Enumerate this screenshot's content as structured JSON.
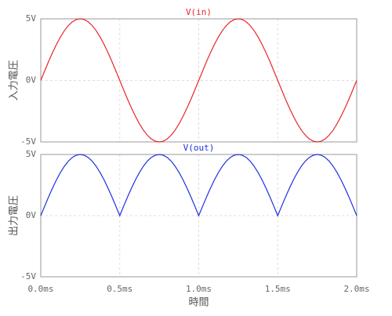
{
  "chart_data": [
    {
      "type": "line",
      "ylabel": "入力電圧",
      "grid": true,
      "x": [
        0,
        0.025,
        0.05,
        0.075,
        0.1,
        0.125,
        0.15,
        0.175,
        0.2,
        0.225,
        0.25,
        0.275,
        0.3,
        0.325,
        0.35,
        0.375,
        0.4,
        0.425,
        0.45,
        0.475,
        0.5,
        0.525,
        0.55,
        0.575,
        0.6,
        0.625,
        0.65,
        0.675,
        0.7,
        0.725,
        0.75,
        0.775,
        0.8,
        0.825,
        0.85,
        0.875,
        0.9,
        0.925,
        0.95,
        0.975,
        1,
        1.025,
        1.05,
        1.075,
        1.1,
        1.125,
        1.15,
        1.175,
        1.2,
        1.225,
        1.25,
        1.275,
        1.3,
        1.325,
        1.35,
        1.375,
        1.4,
        1.425,
        1.45,
        1.475,
        1.5,
        1.525,
        1.55,
        1.575,
        1.6,
        1.625,
        1.65,
        1.675,
        1.7,
        1.725,
        1.75,
        1.775,
        1.8,
        1.825,
        1.85,
        1.875,
        1.9,
        1.925,
        1.95,
        1.975,
        2
      ],
      "series": [
        {
          "name": "V(in)",
          "color": "#e8262a",
          "values": [
            0,
            0.78,
            1.55,
            2.27,
            2.94,
            3.54,
            4.05,
            4.46,
            4.76,
            4.94,
            5,
            4.94,
            4.76,
            4.46,
            4.05,
            3.54,
            2.94,
            2.27,
            1.55,
            0.78,
            0,
            -0.78,
            -1.55,
            -2.27,
            -2.94,
            -3.54,
            -4.05,
            -4.46,
            -4.76,
            -4.94,
            -5,
            -4.94,
            -4.76,
            -4.46,
            -4.05,
            -3.54,
            -2.94,
            -2.27,
            -1.55,
            -0.78,
            0,
            0.78,
            1.55,
            2.27,
            2.94,
            3.54,
            4.05,
            4.46,
            4.76,
            4.94,
            5,
            4.94,
            4.76,
            4.46,
            4.05,
            3.54,
            2.94,
            2.27,
            1.55,
            0.78,
            0,
            -0.78,
            -1.55,
            -2.27,
            -2.94,
            -3.54,
            -4.05,
            -4.46,
            -4.76,
            -4.94,
            -5,
            -4.94,
            -4.76,
            -4.46,
            -4.05,
            -3.54,
            -2.94,
            -2.27,
            -1.55,
            -0.78,
            0
          ]
        }
      ],
      "xlim": [
        0,
        2
      ],
      "xticks": [
        0,
        0.5,
        1,
        1.5,
        2
      ],
      "ylim": [
        -5,
        5
      ],
      "yticks": [
        {
          "value": -5,
          "label": "-5V"
        },
        {
          "value": 0,
          "label": "0V"
        },
        {
          "value": 5,
          "label": "5V"
        }
      ]
    },
    {
      "type": "line",
      "ylabel": "出力電圧",
      "xlabel": "時間",
      "grid": true,
      "x": [
        0,
        0.025,
        0.05,
        0.075,
        0.1,
        0.125,
        0.15,
        0.175,
        0.2,
        0.225,
        0.25,
        0.275,
        0.3,
        0.325,
        0.35,
        0.375,
        0.4,
        0.425,
        0.45,
        0.475,
        0.5,
        0.525,
        0.55,
        0.575,
        0.6,
        0.625,
        0.65,
        0.675,
        0.7,
        0.725,
        0.75,
        0.775,
        0.8,
        0.825,
        0.85,
        0.875,
        0.9,
        0.925,
        0.95,
        0.975,
        1,
        1.025,
        1.05,
        1.075,
        1.1,
        1.125,
        1.15,
        1.175,
        1.2,
        1.225,
        1.25,
        1.275,
        1.3,
        1.325,
        1.35,
        1.375,
        1.4,
        1.425,
        1.45,
        1.475,
        1.5,
        1.525,
        1.55,
        1.575,
        1.6,
        1.625,
        1.65,
        1.675,
        1.7,
        1.725,
        1.75,
        1.775,
        1.8,
        1.825,
        1.85,
        1.875,
        1.9,
        1.925,
        1.95,
        1.975,
        2
      ],
      "series": [
        {
          "name": "V(out)",
          "color": "#1f2fe0",
          "values": [
            0,
            0.78,
            1.55,
            2.27,
            2.94,
            3.54,
            4.05,
            4.46,
            4.76,
            4.94,
            5,
            4.94,
            4.76,
            4.46,
            4.05,
            3.54,
            2.94,
            2.27,
            1.55,
            0.78,
            0,
            0.78,
            1.55,
            2.27,
            2.94,
            3.54,
            4.05,
            4.46,
            4.76,
            4.94,
            5,
            4.94,
            4.76,
            4.46,
            4.05,
            3.54,
            2.94,
            2.27,
            1.55,
            0.78,
            0,
            0.78,
            1.55,
            2.27,
            2.94,
            3.54,
            4.05,
            4.46,
            4.76,
            4.94,
            5,
            4.94,
            4.76,
            4.46,
            4.05,
            3.54,
            2.94,
            2.27,
            1.55,
            0.78,
            0,
            0.78,
            1.55,
            2.27,
            2.94,
            3.54,
            4.05,
            4.46,
            4.76,
            4.94,
            5,
            4.94,
            4.76,
            4.46,
            4.05,
            3.54,
            2.94,
            2.27,
            1.55,
            0.78,
            0
          ]
        }
      ],
      "xlim": [
        0,
        2
      ],
      "xticks": [
        {
          "value": 0,
          "label": "0.0ms"
        },
        {
          "value": 0.5,
          "label": "0.5ms"
        },
        {
          "value": 1,
          "label": "1.0ms"
        },
        {
          "value": 1.5,
          "label": "1.5ms"
        },
        {
          "value": 2,
          "label": "2.0ms"
        }
      ],
      "ylim": [
        -5,
        5
      ],
      "yticks": [
        {
          "value": -5,
          "label": "-5V"
        },
        {
          "value": 0,
          "label": "0V"
        },
        {
          "value": 5,
          "label": "5V"
        }
      ]
    }
  ]
}
